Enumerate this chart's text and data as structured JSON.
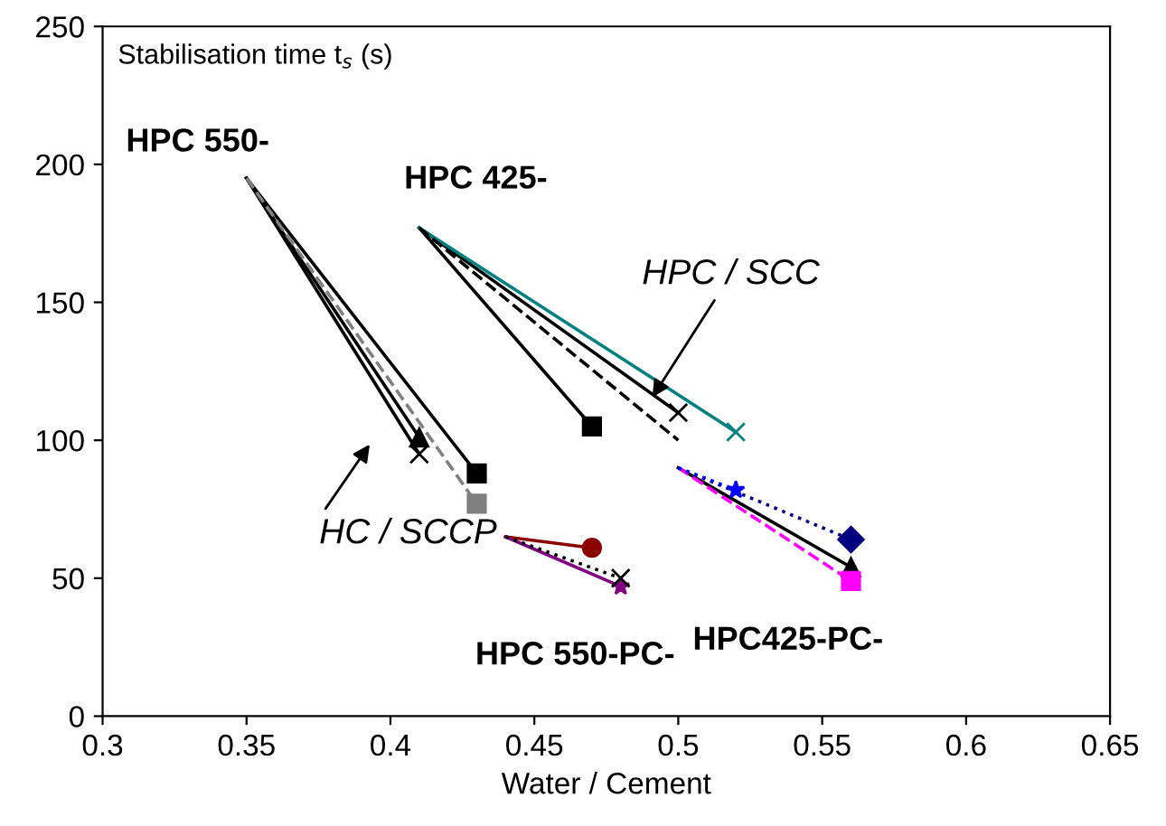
{
  "chart_data": {
    "type": "line",
    "xlabel": "Water / Cement",
    "ylabel": "Stabilisation time t$_{s}$ (s)",
    "xlim": [
      0.3,
      0.65
    ],
    "xticks": [
      0.3,
      0.35,
      0.4,
      0.45,
      0.5,
      0.55,
      0.6,
      0.65
    ],
    "ylim": [
      0,
      250
    ],
    "yticks": [
      0,
      50,
      100,
      150,
      200,
      250
    ],
    "grid": false,
    "legend": false,
    "series": [
      {
        "x": [
          0.35,
          0.41
        ],
        "values": [
          195,
          101
        ],
        "color": "#000000",
        "marker": "triangle",
        "line_style": "solid"
      },
      {
        "x": [
          0.35,
          0.41
        ],
        "values": [
          195,
          95
        ],
        "color": "#000000",
        "marker": "cross",
        "line_style": "solid"
      },
      {
        "x": [
          0.35,
          0.43
        ],
        "values": [
          195,
          88
        ],
        "color": "#000000",
        "marker": "square",
        "line_style": "solid"
      },
      {
        "x": [
          0.35,
          0.43
        ],
        "values": [
          195,
          77
        ],
        "color": "#808080",
        "marker": "square",
        "line_style": "dashed"
      },
      {
        "x": [
          0.41,
          0.47
        ],
        "values": [
          177,
          105
        ],
        "color": "#000000",
        "marker": "square",
        "line_style": "solid"
      },
      {
        "x": [
          0.41,
          0.5
        ],
        "values": [
          177,
          110
        ],
        "color": "#000000",
        "marker": "cross",
        "line_style": "solid"
      },
      {
        "x": [
          0.41,
          0.52
        ],
        "values": [
          177,
          103
        ],
        "color": "#008080",
        "marker": "cross",
        "line_style": "solid"
      },
      {
        "x": [
          0.41,
          0.5
        ],
        "values": [
          177,
          100
        ],
        "color": "#000000",
        "marker": "none",
        "line_style": "dashed"
      },
      {
        "x": [
          0.5,
          0.56
        ],
        "values": [
          90,
          54
        ],
        "color": "#000000",
        "marker": "triangle",
        "line_style": "solid"
      },
      {
        "x": [
          0.5,
          0.56
        ],
        "values": [
          90,
          49
        ],
        "color": "#ff00ff",
        "marker": "square",
        "line_style": "dashed"
      },
      {
        "x": [
          0.5,
          0.56
        ],
        "values": [
          90,
          64
        ],
        "color": "#000080",
        "marker": "diamond",
        "line_style": "dotted"
      },
      {
        "x": [
          0.5,
          0.52
        ],
        "values": [
          90,
          82
        ],
        "color": "#0000ff",
        "marker": "star",
        "line_style": "dotted"
      },
      {
        "x": [
          0.44,
          0.47
        ],
        "values": [
          65,
          61
        ],
        "color": "#8b0000",
        "marker": "circle",
        "line_style": "solid"
      },
      {
        "x": [
          0.44,
          0.48
        ],
        "values": [
          65,
          47
        ],
        "color": "#800080",
        "marker": "star",
        "line_style": "solid"
      },
      {
        "x": [
          0.44,
          0.48
        ],
        "values": [
          65,
          50
        ],
        "color": "#000000",
        "marker": "cross",
        "line_style": "dotted"
      }
    ],
    "annotations": [
      {
        "text": "HPC 550-",
        "x": 0.35,
        "y": 195
      },
      {
        "text": "HPC 425-",
        "x": 0.41,
        "y": 177
      },
      "HPC 550-PC-",
      {
        "text": "HPC425-PC-",
        "x": 0.56,
        "y": 49
      },
      {
        "text": "HPC / SCC",
        "x": 0.49,
        "y": 114
      },
      "HC / SCCP"
    ]
  }
}
